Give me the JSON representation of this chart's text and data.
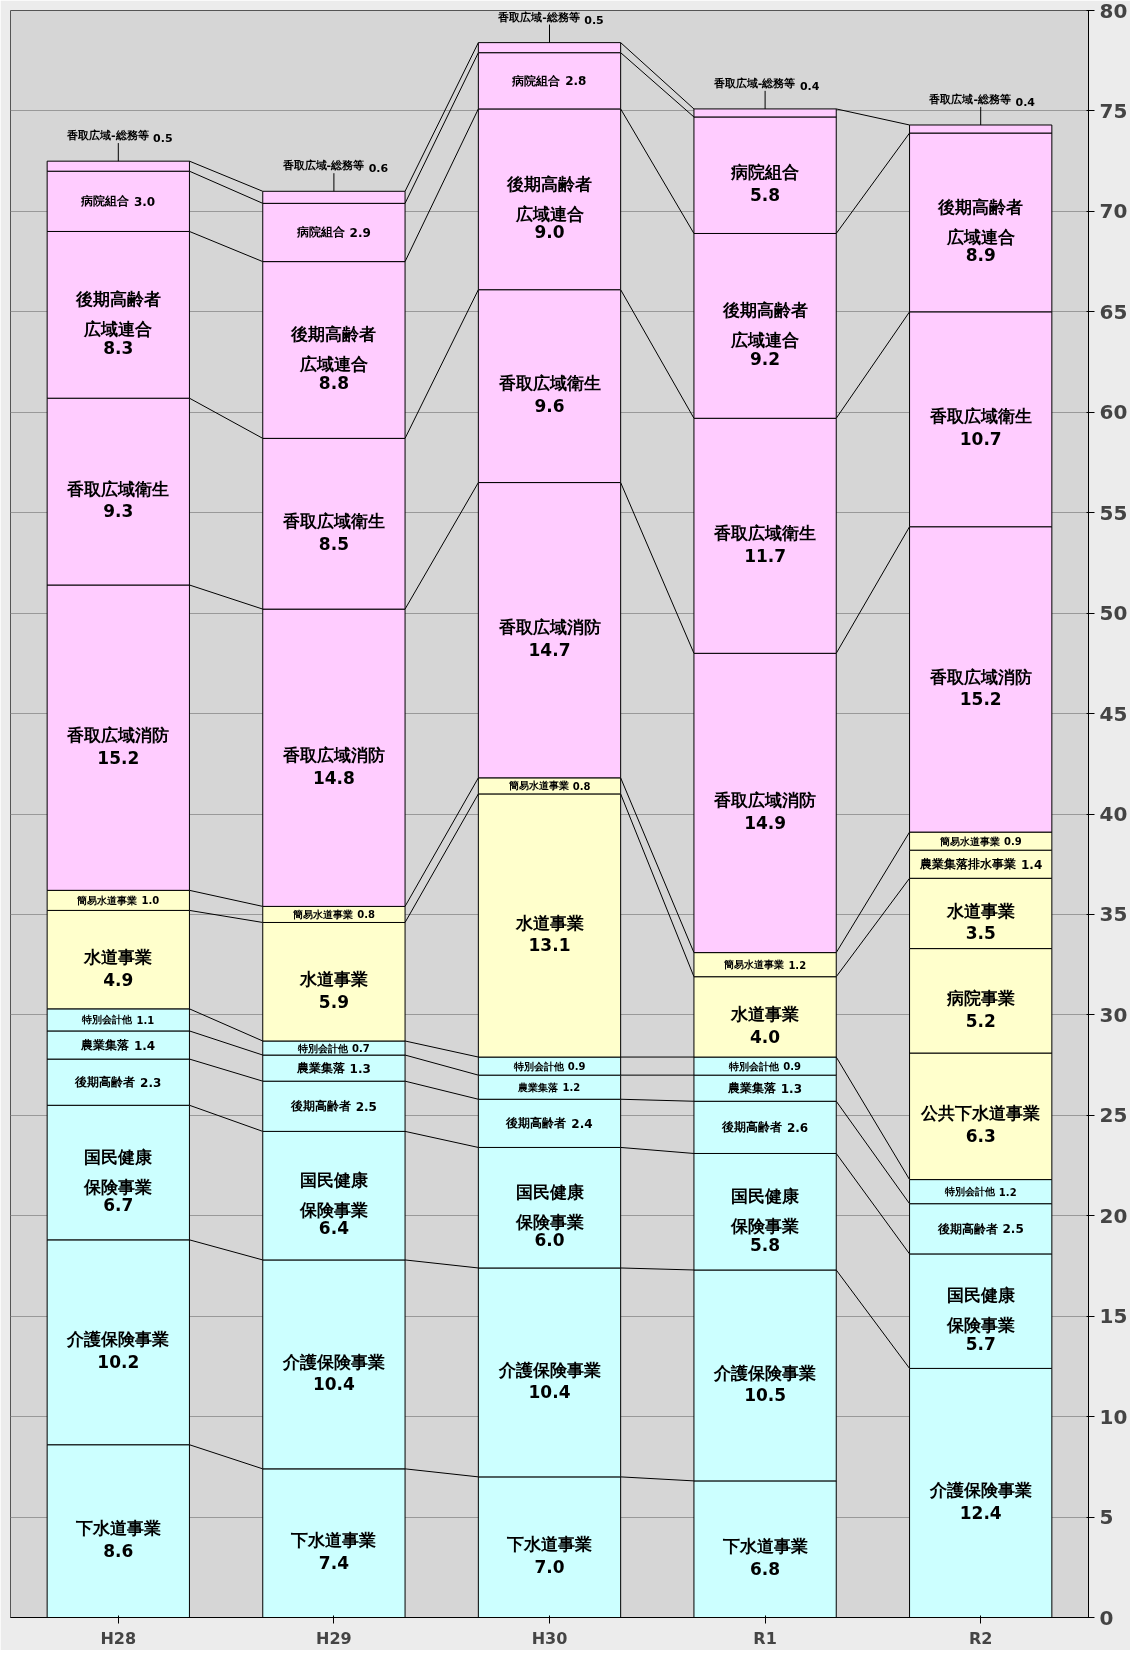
{
  "chart_data": {
    "type": "bar",
    "categories": [
      "H28",
      "H29",
      "H30",
      "R1",
      "R2"
    ],
    "series": [
      {
        "name": "下水道事業",
        "color": "#ccffff",
        "values": [
          8.6,
          7.4,
          7.0,
          6.8,
          null
        ],
        "base": [
          0,
          0,
          0,
          0,
          null
        ],
        "value_labels": [
          "8.6",
          "7.4",
          "7.0",
          "6.8",
          null
        ]
      },
      {
        "name": "介護保険事業",
        "color": "#ccffff",
        "values": [
          10.2,
          10.4,
          10.4,
          10.5,
          12.4
        ],
        "base": [
          8.6,
          7.4,
          7.0,
          6.8,
          0
        ],
        "value_labels": [
          "10.2",
          "10.4",
          "10.4",
          "10.5",
          "12.4"
        ]
      },
      {
        "name": "国民健康保険事業",
        "color": "#ccffff",
        "values": [
          6.7,
          6.4,
          6.0,
          5.8,
          5.7
        ],
        "base": [
          18.8,
          17.8,
          17.4,
          17.3,
          12.4
        ],
        "value_labels": [
          "6.7",
          "6.4",
          "6.0",
          "5.8",
          "5.7"
        ]
      },
      {
        "name": "後期高齢者",
        "color": "#ccffff",
        "values": [
          2.3,
          2.5,
          2.4,
          2.6,
          2.5
        ],
        "base": [
          25.5,
          24.2,
          23.4,
          23.1,
          18.1
        ],
        "value_labels": [
          "2.3",
          "2.5",
          "2.4",
          "2.6",
          "2.5"
        ]
      },
      {
        "name": "農業集落",
        "color": "#ccffff",
        "values": [
          1.4,
          1.3,
          1.2,
          1.3,
          null
        ],
        "base": [
          27.8,
          26.7,
          25.8,
          25.7,
          null
        ],
        "value_labels": [
          "1.4",
          "1.3",
          "1.2",
          "1.3",
          null
        ]
      },
      {
        "name": "特別会計他",
        "color": "#ccffff",
        "values": [
          1.1,
          0.7,
          0.9,
          0.9,
          1.2
        ],
        "base": [
          29.2,
          28.0,
          27.0,
          27.0,
          20.6
        ],
        "value_labels": [
          "1.1",
          "0.7",
          "0.9",
          "0.9",
          "1.2"
        ]
      },
      {
        "name": "公共下水道事業",
        "color": "#ffffcc",
        "values": [
          null,
          null,
          null,
          null,
          6.3
        ],
        "base": [
          null,
          null,
          null,
          null,
          21.8
        ],
        "value_labels": [
          null,
          null,
          null,
          null,
          "6.3"
        ]
      },
      {
        "name": "病院事業",
        "color": "#ffffcc",
        "values": [
          null,
          null,
          null,
          null,
          5.2
        ],
        "base": [
          null,
          null,
          null,
          null,
          28.1
        ],
        "value_labels": [
          null,
          null,
          null,
          null,
          "5.2"
        ]
      },
      {
        "name": "水道事業",
        "color": "#ffffcc",
        "values": [
          4.9,
          5.9,
          13.1,
          4.0,
          3.5
        ],
        "base": [
          30.3,
          28.7,
          27.9,
          27.9,
          33.3
        ],
        "value_labels": [
          "4.9",
          "5.9",
          "13.1",
          "4.0",
          "3.5"
        ]
      },
      {
        "name": "農業集落排水事業",
        "color": "#ffffcc",
        "values": [
          null,
          null,
          null,
          null,
          1.4
        ],
        "base": [
          null,
          null,
          null,
          null,
          36.8
        ],
        "value_labels": [
          null,
          null,
          null,
          null,
          "1.4"
        ]
      },
      {
        "name": "簡易水道事業",
        "color": "#ffffcc",
        "values": [
          1.0,
          0.8,
          0.8,
          1.2,
          0.9
        ],
        "base": [
          35.2,
          34.6,
          41.0,
          31.9,
          38.2
        ],
        "value_labels": [
          "1.0",
          "0.8",
          "0.8",
          "1.2",
          "0.9"
        ]
      },
      {
        "name": "香取広域消防",
        "color": "#ffccff",
        "values": [
          15.2,
          14.8,
          14.7,
          14.9,
          15.2
        ],
        "base": [
          36.2,
          35.4,
          41.8,
          33.1,
          39.1
        ],
        "value_labels": [
          "15.2",
          "14.8",
          "14.7",
          "14.9",
          "15.2"
        ]
      },
      {
        "name": "香取広域衛生",
        "color": "#ffccff",
        "values": [
          9.3,
          8.5,
          9.6,
          11.7,
          10.7
        ],
        "base": [
          51.4,
          50.2,
          56.5,
          48.0,
          54.3
        ],
        "value_labels": [
          "9.3",
          "8.5",
          "9.6",
          "11.7",
          "10.7"
        ]
      },
      {
        "name": "後期高齢者広域連合",
        "color": "#ffccff",
        "values": [
          8.3,
          8.8,
          9.0,
          9.2,
          8.9
        ],
        "base": [
          60.7,
          58.7,
          66.1,
          59.7,
          65.0
        ],
        "value_labels": [
          "8.3",
          "8.8",
          "9.0",
          "9.2",
          "8.9"
        ]
      },
      {
        "name": "病院組合",
        "color": "#ffccff",
        "values": [
          3.0,
          2.9,
          2.8,
          5.8,
          null
        ],
        "base": [
          69.0,
          67.5,
          75.1,
          68.9,
          null
        ],
        "value_labels": [
          "3.0",
          "2.9",
          "2.8",
          "5.8",
          null
        ]
      },
      {
        "name": "香取広域-総務等",
        "color": "#ffccff",
        "values": [
          0.5,
          0.6,
          0.5,
          0.4,
          0.4
        ],
        "base": [
          72.0,
          70.4,
          77.9,
          74.7,
          73.9
        ],
        "value_labels": [
          "0.5",
          "0.6",
          "0.5",
          "0.4",
          "0.4"
        ]
      }
    ],
    "ylim": [
      0,
      80
    ],
    "yticks": [
      0,
      5,
      10,
      15,
      20,
      25,
      30,
      35,
      40,
      45,
      50,
      55,
      60,
      65,
      70,
      75,
      80
    ],
    "grid": "y"
  }
}
